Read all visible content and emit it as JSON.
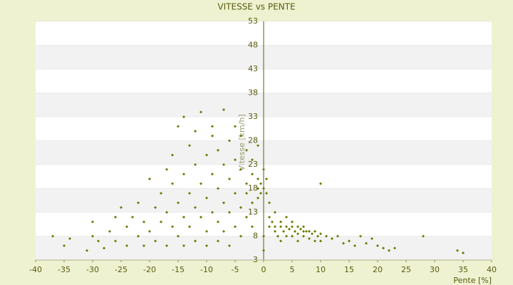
{
  "chart_data": {
    "type": "scatter",
    "title": "VITESSE vs PENTE",
    "xlabel": "Pente [%]",
    "ylabel": "Vitesse [km/h]",
    "x": [
      -37,
      -35,
      -34,
      -31,
      -30,
      -30,
      -29,
      -28,
      -27,
      -26,
      -26,
      -25,
      -24,
      -24,
      -23,
      -22,
      -22,
      -21,
      -21,
      -20,
      -20,
      -19,
      -19,
      -18,
      -18,
      -17,
      -17,
      -17,
      -16,
      -16,
      -16,
      -15,
      -15,
      -15,
      -14,
      -14,
      -14,
      -14,
      -13,
      -13,
      -13,
      -12,
      -12,
      -12,
      -12,
      -11,
      -11,
      -11,
      -10,
      -10,
      -10,
      -10,
      -9,
      -9,
      -9,
      -9,
      -8,
      -8,
      -8,
      -8,
      -7,
      -7,
      -7,
      -7,
      -6,
      -6,
      -6,
      -6,
      -5,
      -5,
      -5,
      -5,
      -4,
      -4,
      -4,
      -4,
      -3,
      -3,
      -3,
      -3,
      -2,
      -2,
      -2,
      -2,
      -1,
      -1,
      -1,
      -1,
      -0.5,
      -0.5,
      0,
      0,
      0,
      0,
      0.5,
      0.5,
      1,
      1,
      1,
      1.5,
      2,
      2,
      2,
      2.5,
      3,
      3,
      3,
      3.5,
      4,
      4,
      4,
      4.5,
      5,
      5,
      5,
      5.5,
      6,
      6,
      6,
      6.5,
      7,
      7,
      7,
      7.5,
      8,
      8,
      8.5,
      9,
      9,
      9.5,
      10,
      10,
      10,
      11,
      12,
      13,
      14,
      15,
      16,
      17,
      18,
      19,
      20,
      21,
      22,
      23,
      28,
      34,
      35
    ],
    "values": [
      8,
      6,
      7.5,
      5,
      11,
      8,
      7,
      5.5,
      9,
      12,
      7,
      14,
      10,
      6,
      12,
      8,
      15,
      11,
      6,
      20,
      9,
      14,
      7,
      17,
      11,
      22,
      13,
      6,
      10,
      19,
      25,
      15,
      8,
      31,
      12,
      21,
      6,
      33,
      17,
      10,
      27,
      14,
      23,
      7,
      30,
      19,
      12,
      34,
      16,
      25,
      9,
      6,
      21,
      13,
      29,
      31,
      18,
      11,
      26,
      7,
      23,
      15,
      34.5,
      9,
      20,
      28,
      13,
      6,
      17,
      24,
      31,
      10,
      22,
      14,
      29,
      8,
      19,
      26,
      12,
      17,
      21,
      15,
      24,
      10,
      18,
      20,
      16,
      27,
      19,
      17,
      18,
      22,
      5,
      8,
      17,
      20,
      15,
      12,
      10,
      11,
      10,
      9,
      13,
      8,
      11,
      10,
      7,
      9,
      10,
      12,
      8,
      9.5,
      10,
      8,
      11,
      9,
      10,
      8.5,
      7,
      9.5,
      9,
      10,
      8,
      9,
      9,
      7.5,
      8.5,
      9,
      7,
      8,
      8.5,
      19,
      7,
      8,
      7.5,
      8,
      6.5,
      7,
      6,
      8,
      6.5,
      7.5,
      6,
      5.5,
      5,
      5.5,
      8,
      5,
      4.5
    ],
    "color": "#6b7a00",
    "xlim": [
      -40,
      40
    ],
    "xticks": [
      -40,
      -35,
      -30,
      -25,
      -20,
      -15,
      -10,
      -5,
      0,
      5,
      10,
      15,
      20,
      25,
      30,
      35,
      40
    ],
    "ylim": [
      3,
      53
    ],
    "yticks": [
      3,
      8,
      13,
      18,
      23,
      28,
      33,
      38,
      43,
      48,
      53
    ],
    "grid": true
  }
}
